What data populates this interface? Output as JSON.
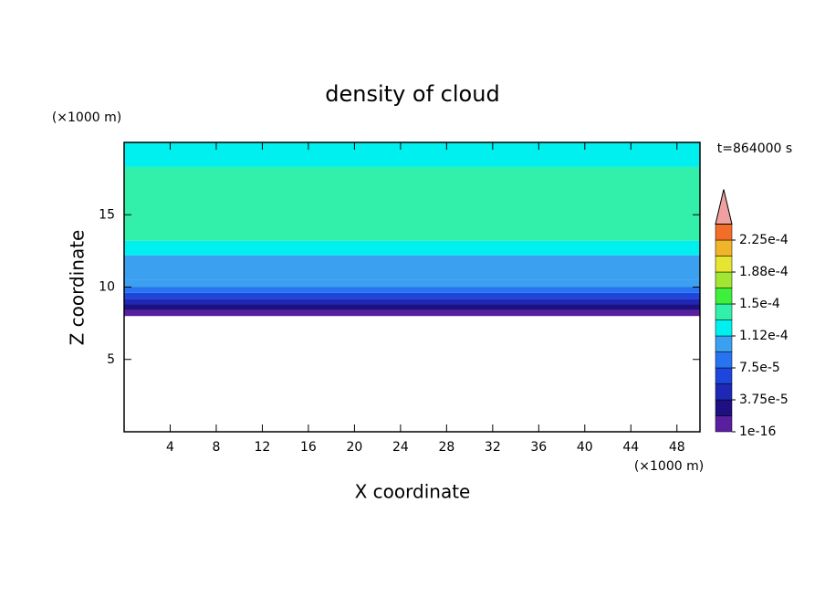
{
  "chart_data": {
    "type": "contour",
    "title": "density of cloud",
    "x_label": "X coordinate",
    "y_label": "Z coordinate",
    "x_unit": "(×1000 m)",
    "y_unit": "(×1000 m)",
    "time_label": "t=864000 s",
    "xlim": [
      0,
      50
    ],
    "xticks": [
      4,
      8,
      12,
      16,
      20,
      24,
      28,
      32,
      36,
      40,
      44,
      48
    ],
    "ylim": [
      0,
      20
    ],
    "yticks": [
      5,
      10,
      15
    ],
    "profile": {
      "z_bottom": [
        8,
        8.4,
        8.8,
        9.2,
        9.6,
        10.0,
        10.5,
        12.2,
        13.2,
        18.3
      ],
      "z_top": [
        8.4,
        8.8,
        9.2,
        9.6,
        10.0,
        10.5,
        12.2,
        13.2,
        18.3,
        20
      ],
      "values": [
        1e-05,
        2.5e-05,
        4e-05,
        6e-05,
        8e-05,
        9.5e-05,
        0.000105,
        0.00012,
        0.00014,
        0.000125
      ]
    },
    "levels": [
      1e-16,
      1.875e-05,
      3.75e-05,
      5.625e-05,
      7.5e-05,
      9.375e-05,
      0.0001125,
      0.00013125,
      0.00015,
      0.00016875,
      0.0001875,
      0.00020625,
      0.000225,
      0.00024375
    ],
    "level_colors": [
      "#5a1ea0",
      "#1e0f82",
      "#1e28b4",
      "#1e46dc",
      "#2873f0",
      "#3ca0f0",
      "#00f0f0",
      "#32f0aa",
      "#3cf03c",
      "#a0e632",
      "#e6e632",
      "#f0b428",
      "#f06e28"
    ],
    "extend_color": "#f0a0a0",
    "colorbar_ticks": [
      {
        "value": 1e-16,
        "label": "1e-16"
      },
      {
        "value": 3.75e-05,
        "label": "3.75e-5"
      },
      {
        "value": 7.5e-05,
        "label": "7.5e-5"
      },
      {
        "value": 0.0001125,
        "label": "1.12e-4"
      },
      {
        "value": 0.00015,
        "label": "1.5e-4"
      },
      {
        "value": 0.0001875,
        "label": "1.88e-4"
      },
      {
        "value": 0.000225,
        "label": "2.25e-4"
      }
    ]
  }
}
